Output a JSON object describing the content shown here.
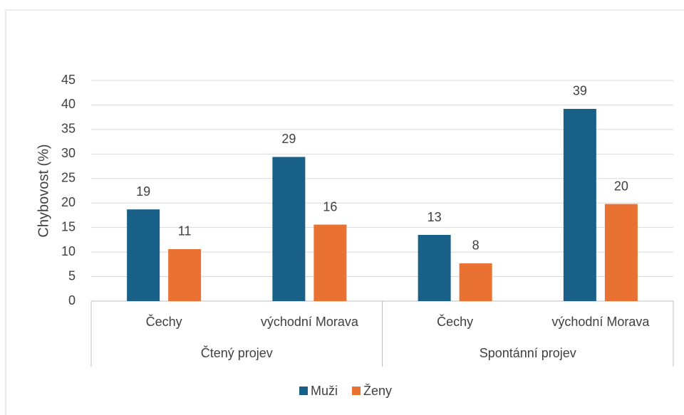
{
  "chart_data": {
    "type": "bar",
    "y_label": "Chybovost (%)",
    "groups": [
      {
        "name": "Čtený projev",
        "categories": [
          "Čechy",
          "východní Morava"
        ]
      },
      {
        "name": "Spontánní projev",
        "categories": [
          "Čechy",
          "východní Morava"
        ]
      }
    ],
    "series": [
      {
        "name": "Muži",
        "color": "#196089",
        "values": [
          18.7,
          29.4,
          13.5,
          39.2
        ],
        "value_labels": [
          "19",
          "29",
          "13",
          "39"
        ]
      },
      {
        "name": "Ženy",
        "color": "#e97132",
        "values": [
          10.6,
          15.6,
          7.7,
          19.8
        ],
        "value_labels": [
          "11",
          "16",
          "8",
          "20"
        ]
      }
    ],
    "ylim": [
      0,
      45
    ],
    "yticks": [
      0,
      5,
      10,
      15,
      20,
      25,
      30,
      35,
      40,
      45
    ],
    "grid": true,
    "legend": "bottom"
  }
}
